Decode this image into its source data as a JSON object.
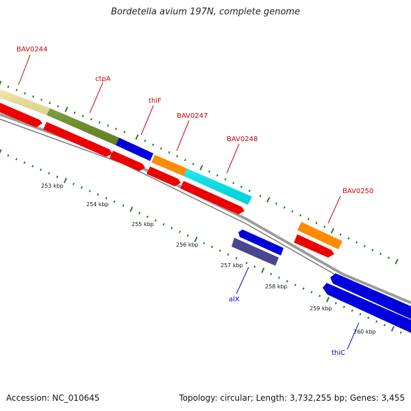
{
  "title": "Bordetella avium 197N, complete genome",
  "footer": {
    "accession": "Accession: NC_010645",
    "summary": "Topology: circular; Length: 3,732,255 bp; Genes: 3,455"
  },
  "colors": {
    "backbone": "#8a8a8a",
    "tick": "#2a7a2a",
    "label_plus": "#cc0000",
    "label_minus": "#0000cc",
    "axis_text": "#111111"
  },
  "kbp_labels": [
    "253 kbp",
    "254 kbp",
    "255 kbp",
    "256 kbp",
    "257 kbp",
    "258 kbp",
    "259 kbp",
    "260 kbp"
  ],
  "gene_labels": [
    {
      "name": "BAV0244",
      "strand": "plus"
    },
    {
      "name": "ctpA",
      "strand": "plus"
    },
    {
      "name": "thiF",
      "strand": "plus"
    },
    {
      "name": "BAV0247",
      "strand": "plus"
    },
    {
      "name": "BAV0248",
      "strand": "plus"
    },
    {
      "name": "BAV0250",
      "strand": "plus"
    },
    {
      "name": "alX",
      "strand": "minus"
    },
    {
      "name": "thiC",
      "strand": "minus"
    }
  ],
  "features": [
    {
      "id": "BAV0244",
      "color": "#f2e6a0",
      "track": "outer"
    },
    {
      "id": "ctpA",
      "color": "#6b8e23",
      "track": "outer"
    },
    {
      "id": "thiF",
      "color": "#0000dd",
      "track": "outer"
    },
    {
      "id": "BAV0247",
      "color": "#ff8c00",
      "track": "outer"
    },
    {
      "id": "BAV0248",
      "color": "#00e5ee",
      "track": "outer"
    },
    {
      "id": "BAV0250",
      "color": "#ff8c00",
      "track": "outer"
    },
    {
      "id": "cds-1",
      "color": "#ee0000",
      "track": "cds"
    },
    {
      "id": "cds-2",
      "color": "#ee0000",
      "track": "cds"
    },
    {
      "id": "cds-3",
      "color": "#ee0000",
      "track": "cds"
    },
    {
      "id": "cds-4",
      "color": "#ee0000",
      "track": "cds"
    },
    {
      "id": "cds-5",
      "color": "#ee0000",
      "track": "cds"
    },
    {
      "id": "cds-6",
      "color": "#ee0000",
      "track": "cds"
    },
    {
      "id": "minus-gene-1",
      "color": "#0000dd",
      "track": "minus"
    },
    {
      "id": "minus-cds-1",
      "color": "#4a4590",
      "track": "minus"
    },
    {
      "id": "thiC",
      "color": "#0000dd",
      "track": "minus"
    },
    {
      "id": "thiC-cds",
      "color": "#0000dd",
      "track": "minus"
    }
  ]
}
